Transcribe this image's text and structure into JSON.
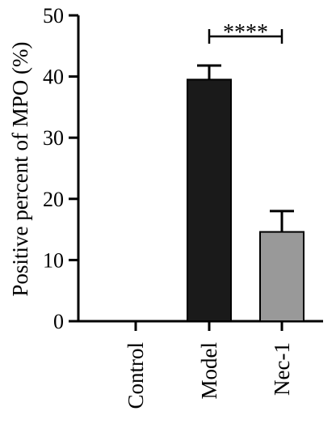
{
  "chart_data": {
    "type": "bar",
    "ylabel": "Positive percent of MPO (%)",
    "xlabel": "",
    "title": "",
    "ylim": [
      0,
      50
    ],
    "yticks": [
      0,
      10,
      20,
      30,
      40,
      50
    ],
    "categories": [
      "Control",
      "Model",
      "Nec-1"
    ],
    "values": [
      0,
      39.5,
      14.6
    ],
    "errors": [
      0,
      2.3,
      3.4
    ],
    "bar_colors": [
      "#1a1a1a",
      "#1a1a1a",
      "#999999"
    ],
    "significance": [
      {
        "from": "Model",
        "to": "Nec-1",
        "label": "****"
      }
    ],
    "grid": false,
    "legend": "none"
  }
}
